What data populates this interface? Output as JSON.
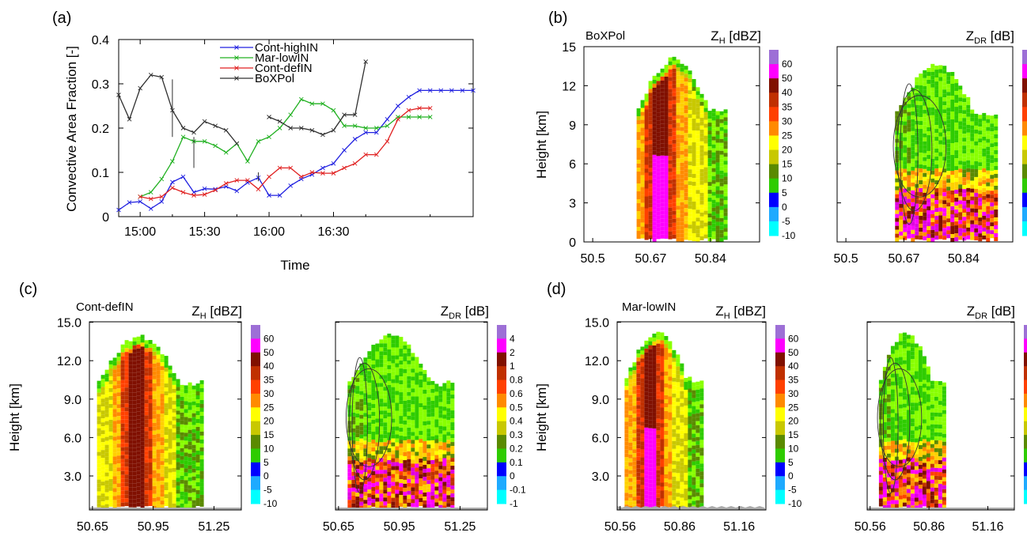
{
  "panel_a": {
    "label": "(a)",
    "chart_data": {
      "type": "line",
      "xlabel": "Time",
      "ylabel": "Convective Area Fraction [-]",
      "ylim": [
        0,
        0.4
      ],
      "y_ticks": [
        "0",
        "0.1",
        "0.2",
        "0.3",
        "0.4"
      ],
      "x_ticks": [
        "15:00",
        "15:30",
        "16:00",
        "16:30"
      ],
      "x_unit": "minutes after 14:50",
      "legend_position": "top-center",
      "series": [
        {
          "name": "Cont-highIN",
          "color": "#2020e0",
          "x": [
            0,
            5,
            10,
            15,
            20,
            25,
            30,
            35,
            40,
            45,
            50,
            55,
            60,
            65,
            70,
            75,
            80,
            85,
            90,
            95,
            100,
            105,
            110,
            115,
            120,
            125,
            130,
            135,
            140,
            145,
            150,
            155,
            160,
            165
          ],
          "y": [
            0.015,
            0.032,
            0.034,
            0.018,
            0.034,
            0.078,
            0.09,
            0.055,
            0.063,
            0.062,
            0.068,
            0.058,
            0.077,
            0.088,
            0.048,
            0.048,
            0.07,
            0.085,
            0.095,
            0.11,
            0.12,
            0.15,
            0.175,
            0.19,
            0.19,
            0.22,
            0.25,
            0.27,
            0.285,
            0.285,
            0.285,
            0.285,
            0.285,
            0.285
          ]
        },
        {
          "name": "Mar-lowIN",
          "color": "#20b020",
          "x": [
            10,
            15,
            20,
            25,
            30,
            35,
            40,
            45,
            50,
            55,
            60,
            65,
            70,
            75,
            80,
            85,
            90,
            95,
            100,
            105,
            110,
            115,
            120,
            125,
            130,
            135,
            140,
            145
          ],
          "y": [
            0.045,
            0.055,
            0.085,
            0.125,
            0.18,
            0.17,
            0.17,
            0.16,
            0.145,
            0.165,
            0.125,
            0.17,
            0.18,
            0.2,
            0.23,
            0.265,
            0.255,
            0.255,
            0.24,
            0.205,
            0.205,
            0.2,
            0.2,
            0.205,
            0.225,
            0.225,
            0.225,
            0.225
          ]
        },
        {
          "name": "Cont-defIN",
          "color": "#e02020",
          "x": [
            10,
            15,
            20,
            25,
            30,
            35,
            40,
            45,
            50,
            55,
            60,
            65,
            70,
            75,
            80,
            85,
            90,
            95,
            100,
            105,
            110,
            115,
            120,
            125,
            130,
            135,
            140,
            145
          ],
          "y": [
            0.045,
            0.04,
            0.045,
            0.065,
            0.055,
            0.048,
            0.05,
            0.06,
            0.075,
            0.082,
            0.082,
            0.062,
            0.09,
            0.11,
            0.11,
            0.09,
            0.1,
            0.098,
            0.098,
            0.11,
            0.12,
            0.14,
            0.14,
            0.17,
            0.22,
            0.24,
            0.245,
            0.245
          ]
        },
        {
          "name": "BoXPol",
          "color": "#303030",
          "x": [
            0,
            5,
            10,
            15,
            20,
            25,
            30,
            35,
            40,
            45,
            50,
            55,
            60,
            65,
            70,
            75,
            80,
            85,
            90,
            95,
            100,
            105,
            110,
            115,
            120
          ],
          "y": [
            0.275,
            0.22,
            0.29,
            0.32,
            0.315,
            0.24,
            0.2,
            0.19,
            0.215,
            0.205,
            0.195,
            0.165,
            null,
            null,
            0.225,
            0.215,
            0.2,
            0.2,
            0.195,
            0.185,
            0.195,
            0.23,
            0.23,
            0.35,
            null
          ]
        }
      ]
    }
  },
  "panel_b": {
    "label": "(b)",
    "subtitle": "BoXPol",
    "ylabel": "Height [km]",
    "y_ticks": [
      "0",
      "3",
      "6",
      "9",
      "12",
      "15"
    ],
    "x_ticks": [
      "50.5",
      "50.67",
      "50.84"
    ],
    "zh_title": "Z",
    "zh_sub": "H",
    "zh_unit": " [dBZ]",
    "zdr_title": "Z",
    "zdr_sub": "DR",
    "zdr_unit": " [dB]"
  },
  "panel_c": {
    "label": "(c)",
    "subtitle": "Cont-defIN",
    "ylabel": "Height [km]",
    "y_ticks": [
      "3.0",
      "6.0",
      "9.0",
      "12.0",
      "15.0"
    ],
    "x_ticks": [
      "50.65",
      "50.95",
      "51.25"
    ],
    "zh_title": "Z",
    "zh_sub": "H",
    "zh_unit": " [dBZ]",
    "zdr_title": "Z",
    "zdr_sub": "DR",
    "zdr_unit": " [dB]"
  },
  "panel_d": {
    "label": "(d)",
    "subtitle": "Mar-lowIN",
    "ylabel": "Height [km]",
    "y_ticks": [
      "3.0",
      "6.0",
      "9.0",
      "12.0",
      "15.0"
    ],
    "x_ticks": [
      "50.56",
      "50.86",
      "51.16"
    ],
    "zh_title": "Z",
    "zh_sub": "H",
    "zh_unit": " [dBZ]",
    "zdr_title": "Z",
    "zdr_sub": "DR",
    "zdr_unit": " [dB]"
  },
  "colorbars": {
    "zh_labels": [
      "60",
      "50",
      "40",
      "35",
      "30",
      "25",
      "20",
      "15",
      "10",
      "5",
      "0",
      "-5",
      "-10"
    ],
    "zdr_labels": [
      "4",
      "2",
      "1",
      "0.8",
      "0.6",
      "0.5",
      "0.4",
      "0.3",
      "0.2",
      "0.1",
      "0",
      "-0.1",
      "-1"
    ],
    "colors": [
      "#9d6fd6",
      "#ff00ff",
      "#e000e0",
      "#801000",
      "#c03000",
      "#ff4000",
      "#ff8a00",
      "#ffd000",
      "#ffff00",
      "#c8c800",
      "#5a8a00",
      "#2ecc00",
      "#88ff00",
      "#0000ff",
      "#1eaaff",
      "#00ffff"
    ]
  }
}
